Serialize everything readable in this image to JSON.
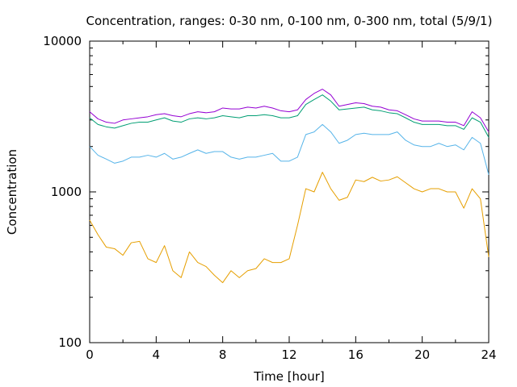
{
  "chart_data": {
    "type": "line",
    "title": "Concentration, ranges: 0-30 nm, 0-100 nm, 0-300 nm, total (5/9/1)",
    "xlabel": "Time [hour]",
    "ylabel": "Concentration",
    "xlim": [
      0,
      24
    ],
    "ylim": [
      100,
      10000
    ],
    "yscale": "log",
    "grid": false,
    "xticks": [
      0,
      4,
      8,
      12,
      16,
      20,
      24
    ],
    "xtick_labels": [
      "0",
      "4",
      "8",
      "12",
      "16",
      "20",
      "24"
    ],
    "yticks": [
      100,
      1000,
      10000
    ],
    "ytick_labels": [
      "100",
      "1000",
      "10000"
    ],
    "x": [
      0,
      0.5,
      1,
      1.5,
      2,
      2.5,
      3,
      3.5,
      4,
      4.5,
      5,
      5.5,
      6,
      6.5,
      7,
      7.5,
      8,
      8.5,
      9,
      9.5,
      10,
      10.5,
      11,
      11.5,
      12,
      12.5,
      13,
      13.5,
      14,
      14.5,
      15,
      15.5,
      16,
      16.5,
      17,
      17.5,
      18,
      18.5,
      19,
      19.5,
      20,
      20.5,
      21,
      21.5,
      22,
      22.5,
      23,
      23.5,
      24
    ],
    "series": [
      {
        "color": "#e69f00",
        "values": [
          650,
          520,
          430,
          420,
          380,
          460,
          470,
          360,
          340,
          440,
          300,
          270,
          400,
          340,
          320,
          280,
          250,
          300,
          270,
          300,
          310,
          360,
          340,
          340,
          360,
          600,
          1050,
          1000,
          1350,
          1050,
          880,
          920,
          1200,
          1170,
          1250,
          1180,
          1200,
          1260,
          1150,
          1050,
          1000,
          1050,
          1050,
          1000,
          1000,
          780,
          1050,
          900,
          370
        ]
      },
      {
        "color": "#56b4e9",
        "values": [
          2000,
          1750,
          1650,
          1550,
          1600,
          1700,
          1700,
          1750,
          1700,
          1800,
          1650,
          1700,
          1800,
          1900,
          1800,
          1850,
          1850,
          1700,
          1650,
          1700,
          1700,
          1750,
          1800,
          1600,
          1600,
          1700,
          2400,
          2500,
          2800,
          2500,
          2100,
          2200,
          2400,
          2450,
          2400,
          2400,
          2400,
          2500,
          2200,
          2050,
          2000,
          2000,
          2100,
          2000,
          2050,
          1900,
          2300,
          2100,
          1300
        ]
      },
      {
        "color": "#009e73",
        "values": [
          3100,
          2800,
          2700,
          2650,
          2750,
          2850,
          2900,
          2900,
          3000,
          3100,
          2950,
          2900,
          3050,
          3100,
          3050,
          3100,
          3200,
          3150,
          3100,
          3200,
          3200,
          3250,
          3200,
          3100,
          3100,
          3200,
          3800,
          4100,
          4400,
          4000,
          3500,
          3550,
          3600,
          3650,
          3500,
          3450,
          3350,
          3300,
          3100,
          2900,
          2800,
          2800,
          2800,
          2750,
          2750,
          2600,
          3100,
          2900,
          2300
        ]
      },
      {
        "color": "#9400d3",
        "values": [
          3400,
          3050,
          2900,
          2850,
          3000,
          3050,
          3100,
          3150,
          3250,
          3300,
          3200,
          3150,
          3300,
          3400,
          3350,
          3400,
          3600,
          3550,
          3550,
          3650,
          3600,
          3700,
          3600,
          3450,
          3400,
          3500,
          4100,
          4500,
          4800,
          4400,
          3700,
          3800,
          3900,
          3850,
          3700,
          3650,
          3500,
          3450,
          3250,
          3050,
          2950,
          2950,
          2950,
          2900,
          2900,
          2750,
          3400,
          3100,
          2500
        ]
      }
    ]
  }
}
